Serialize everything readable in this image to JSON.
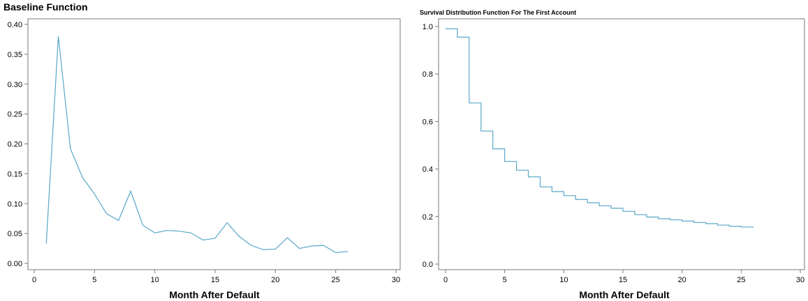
{
  "chart_data": [
    {
      "type": "line",
      "title": "Baseline Function",
      "xlabel": "Month After Default",
      "ylabel": "",
      "xlim": [
        0,
        30
      ],
      "ylim": [
        0,
        0.4
      ],
      "xticks": [
        0,
        5,
        10,
        15,
        20,
        25,
        30
      ],
      "yticks": [
        0.0,
        0.05,
        0.1,
        0.15,
        0.2,
        0.25,
        0.3,
        0.35,
        0.4
      ],
      "ytick_labels": [
        "0.00",
        "0.05",
        "0.10",
        "0.15",
        "0.20",
        "0.25",
        "0.30",
        "0.35",
        "0.40"
      ],
      "grid": false,
      "color": "#5aa7c8",
      "x": [
        1,
        2,
        3,
        4,
        5,
        6,
        7,
        8,
        9,
        10,
        11,
        12,
        13,
        14,
        15,
        16,
        17,
        18,
        19,
        20,
        21,
        22,
        23,
        24,
        25,
        26
      ],
      "y": [
        0.033,
        0.38,
        0.192,
        0.144,
        0.116,
        0.083,
        0.072,
        0.121,
        0.064,
        0.051,
        0.055,
        0.054,
        0.051,
        0.039,
        0.042,
        0.068,
        0.045,
        0.03,
        0.023,
        0.024,
        0.043,
        0.025,
        0.029,
        0.03,
        0.018,
        0.02
      ]
    },
    {
      "type": "line",
      "step": true,
      "title": "Survival Distribution Function For The First Account",
      "xlabel": "Month After Default",
      "ylabel": "",
      "xlim": [
        0,
        30
      ],
      "ylim": [
        0,
        1.0
      ],
      "xticks": [
        0,
        5,
        10,
        15,
        20,
        25,
        30
      ],
      "yticks": [
        0.0,
        0.2,
        0.4,
        0.6,
        0.8,
        1.0
      ],
      "ytick_labels": [
        "0.0",
        "0.2",
        "0.4",
        "0.6",
        "0.8",
        "1.0"
      ],
      "grid": false,
      "color": "#5aa7c8",
      "x": [
        0,
        1,
        2,
        3,
        4,
        5,
        6,
        7,
        8,
        9,
        10,
        11,
        12,
        13,
        14,
        15,
        16,
        17,
        18,
        19,
        20,
        21,
        22,
        23,
        24,
        25,
        26
      ],
      "y": [
        0.99,
        0.955,
        0.678,
        0.56,
        0.485,
        0.432,
        0.395,
        0.367,
        0.325,
        0.305,
        0.288,
        0.272,
        0.258,
        0.245,
        0.235,
        0.222,
        0.208,
        0.198,
        0.191,
        0.186,
        0.181,
        0.175,
        0.17,
        0.164,
        0.159,
        0.156,
        0.153
      ]
    }
  ]
}
